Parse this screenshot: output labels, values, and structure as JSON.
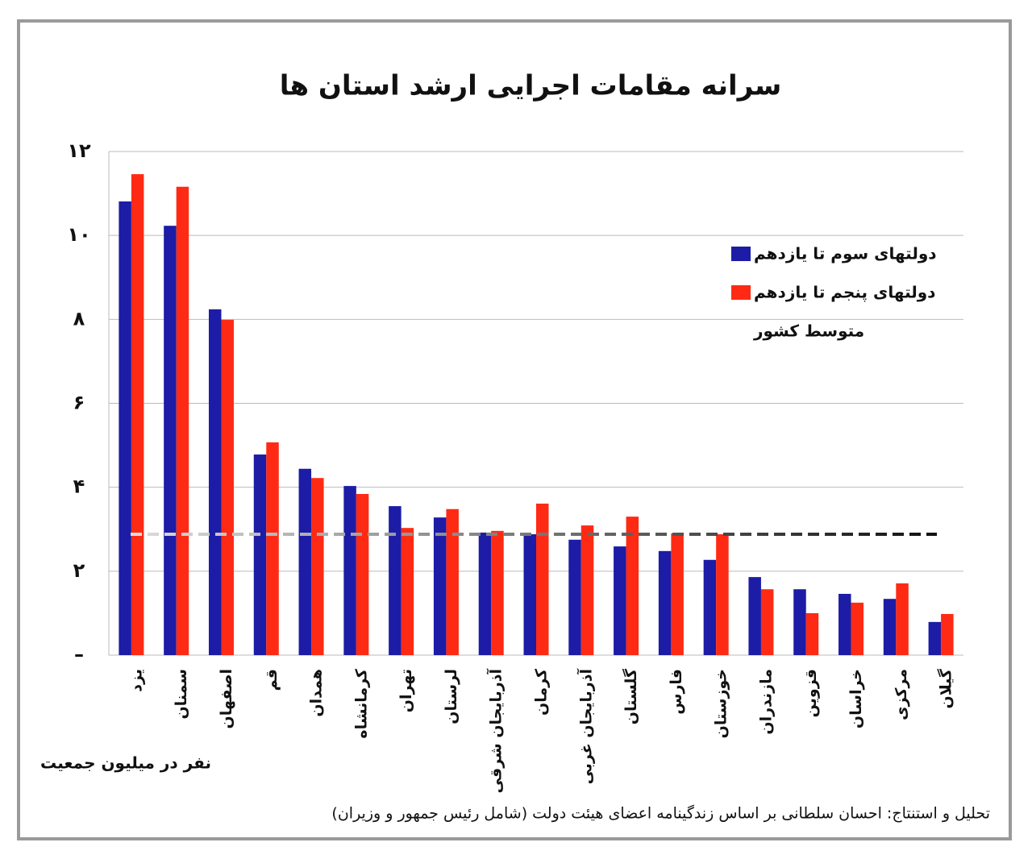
{
  "chart_data": {
    "type": "bar",
    "title": "سرانه مقامات اجرایی ارشد استان ها",
    "y_label": "نفر در میلیون جمعیت",
    "note": "تحلیل و استنتاج: احسان سلطانی بر اساس زندگینامه اعضای هیئت دولت (شامل رئیس جمهور و وزیران)",
    "categories": [
      "یزد",
      "سمنان",
      "اصفهان",
      "قم",
      "همدان",
      "کرمانشاه",
      "تهران",
      "لرستان",
      "آذربایجان شرقی",
      "کرمان",
      "آذربایجان غربی",
      "گلستان",
      "فارس",
      "خوزستان",
      "مازندران",
      "قزوین",
      "خراسان",
      "مرکزی",
      "گیلان"
    ],
    "series": [
      {
        "name": "دولتهای سوم تا یازدهم",
        "color": "#1c1ca6",
        "values": [
          10.81,
          10.23,
          8.24,
          4.78,
          4.44,
          4.03,
          3.55,
          3.28,
          2.92,
          2.88,
          2.75,
          2.59,
          2.48,
          2.27,
          1.86,
          1.57,
          1.46,
          1.34,
          0.79
        ]
      },
      {
        "name": "دولتهای پنجم تا یازدهم",
        "color": "#ff2a14",
        "values": [
          11.46,
          11.16,
          7.99,
          5.07,
          4.22,
          3.84,
          3.03,
          3.48,
          2.96,
          3.61,
          3.09,
          3.3,
          2.9,
          2.88,
          1.57,
          1.0,
          1.25,
          1.71,
          0.98
        ]
      }
    ],
    "average": {
      "name": "متوسط کشور",
      "value": 2.88
    },
    "ylim": [
      0,
      12
    ],
    "yticks": [
      {
        "value": 0,
        "label": "–"
      },
      {
        "value": 2,
        "label": "۲"
      },
      {
        "value": 4,
        "label": "۴"
      },
      {
        "value": 6,
        "label": "۶"
      },
      {
        "value": 8,
        "label": "۸"
      },
      {
        "value": 10,
        "label": "۱۰"
      },
      {
        "value": 12,
        "label": "۱۲"
      }
    ],
    "grid": true
  }
}
